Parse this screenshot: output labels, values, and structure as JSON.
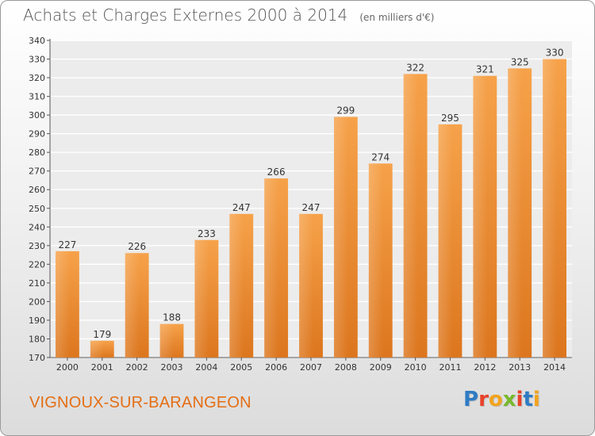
{
  "header": {
    "title": "Achats et Charges Externes 2000 à 2014",
    "unit": "(en milliers d'€)"
  },
  "footer": {
    "commune": "VIGNOUX-SUR-BARANGEON",
    "logo_letters": [
      "P",
      "r",
      "o",
      "x",
      "i",
      "t",
      "i"
    ],
    "logo_colors": [
      "#2e7bc4",
      "#e9412a",
      "#f2a31b",
      "#79b82c",
      "#e9412a",
      "#2e7bc4",
      "#f2a31b"
    ]
  },
  "chart_data": {
    "type": "bar",
    "title": "Achats et Charges Externes 2000 à 2014",
    "subtitle": "(en milliers d'€)",
    "xlabel": "",
    "ylabel": "",
    "categories": [
      "2000",
      "2001",
      "2002",
      "2003",
      "2004",
      "2005",
      "2006",
      "2007",
      "2008",
      "2009",
      "2010",
      "2011",
      "2012",
      "2013",
      "2014"
    ],
    "values": [
      227,
      179,
      226,
      188,
      233,
      247,
      266,
      247,
      299,
      274,
      322,
      295,
      321,
      325,
      330
    ],
    "ylim": [
      170,
      340
    ],
    "yticks": [
      170,
      180,
      190,
      200,
      210,
      220,
      230,
      240,
      250,
      260,
      270,
      280,
      290,
      300,
      310,
      320,
      330,
      340
    ],
    "grid": true,
    "bar_color": "#f39a3c",
    "bar_color_dark": "#d9741c"
  }
}
